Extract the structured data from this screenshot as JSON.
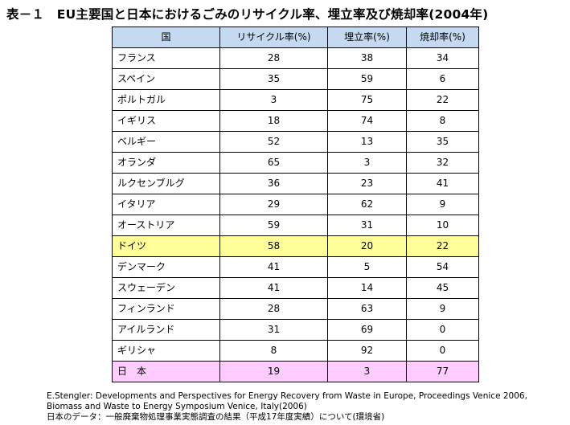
{
  "title": "表－１　EU主要国と日本におけるごみのリサイクル率、埋立率及び焼却率(2004年)",
  "table": {
    "headers": [
      "国",
      "リサイクル率(%)",
      "埋立率(%)",
      "焼却率(%)"
    ],
    "rows": [
      {
        "country": "フランス",
        "recycling": "28",
        "landfill": "38",
        "incineration": "34",
        "highlight": ""
      },
      {
        "country": "スペイン",
        "recycling": "35",
        "landfill": "59",
        "incineration": "6",
        "highlight": ""
      },
      {
        "country": "ポルトガル",
        "recycling": "3",
        "landfill": "75",
        "incineration": "22",
        "highlight": ""
      },
      {
        "country": "イギリス",
        "recycling": "18",
        "landfill": "74",
        "incineration": "8",
        "highlight": ""
      },
      {
        "country": "ベルギー",
        "recycling": "52",
        "landfill": "13",
        "incineration": "35",
        "highlight": ""
      },
      {
        "country": "オランダ",
        "recycling": "65",
        "landfill": "3",
        "incineration": "32",
        "highlight": ""
      },
      {
        "country": "ルクセンブルグ",
        "recycling": "36",
        "landfill": "23",
        "incineration": "41",
        "highlight": ""
      },
      {
        "country": "イタリア",
        "recycling": "29",
        "landfill": "62",
        "incineration": "9",
        "highlight": ""
      },
      {
        "country": "オーストリア",
        "recycling": "59",
        "landfill": "31",
        "incineration": "10",
        "highlight": ""
      },
      {
        "country": "ドイツ",
        "recycling": "58",
        "landfill": "20",
        "incineration": "22",
        "highlight": "yellow"
      },
      {
        "country": "デンマーク",
        "recycling": "41",
        "landfill": "5",
        "incineration": "54",
        "highlight": ""
      },
      {
        "country": "スウェーデン",
        "recycling": "41",
        "landfill": "14",
        "incineration": "45",
        "highlight": ""
      },
      {
        "country": "フィンランド",
        "recycling": "28",
        "landfill": "63",
        "incineration": "9",
        "highlight": ""
      },
      {
        "country": "アイルランド",
        "recycling": "31",
        "landfill": "69",
        "incineration": "0",
        "highlight": ""
      },
      {
        "country": "ギリシャ",
        "recycling": "8",
        "landfill": "92",
        "incineration": "0",
        "highlight": ""
      },
      {
        "country": "日　本",
        "recycling": "19",
        "landfill": "3",
        "incineration": "77",
        "highlight": "pink"
      }
    ]
  },
  "source": {
    "lines": [
      "E.Stengler: Developments and Perspectives for Energy Recovery from Waste in Europe, Proceedings Venice 2006,",
      "Biomass and Waste to Energy Symposium Venice, Italy(2006)",
      "日本のデータ：一般廃棄物処理事業実態調査の結果（平成17年度実績）について(環境省)"
    ]
  },
  "colors": {
    "header_bg": "#c5d9f1",
    "highlight_yellow": "#ffff99",
    "highlight_pink": "#ffccff"
  }
}
